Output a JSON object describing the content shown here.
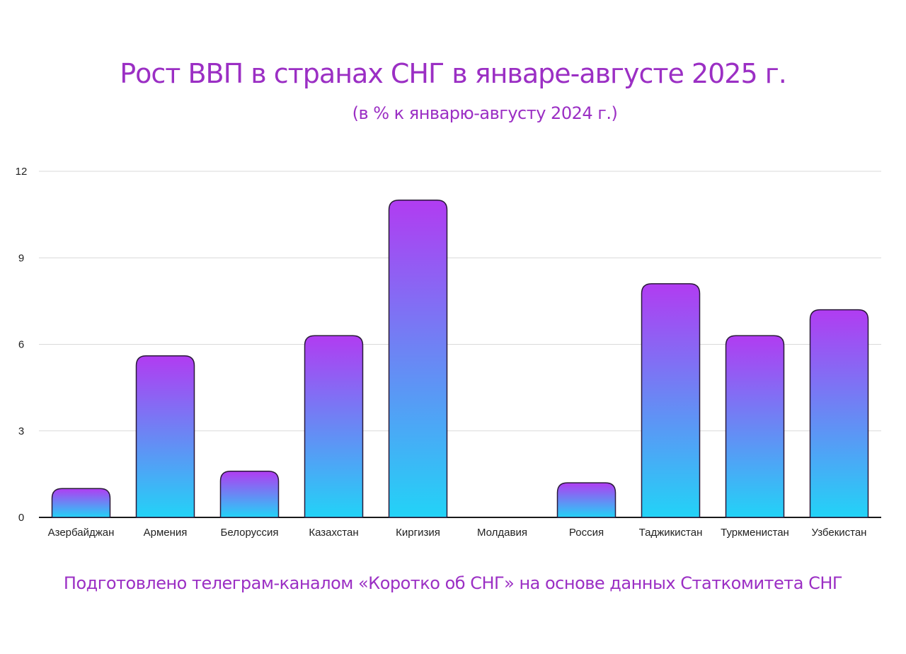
{
  "title": "Рост ВВП в странах СНГ в январе-августе 2025 г.",
  "subtitle": "(в % к январю-августу 2024 г.)",
  "footer": "Подготовлено телеграм-каналом «Коротко об СНГ» на основе данных Статкомитета СНГ",
  "colors": {
    "text_accent": "#9b2fc4",
    "bar_top": "#b13cf2",
    "bar_bottom": "#22d3f7",
    "bar_outline": "#2a1a3a",
    "grid": "#d9d9d9"
  },
  "chart_data": {
    "type": "bar",
    "title": "Рост ВВП в странах СНГ в январе-августе 2025 г.",
    "subtitle": "(в % к январю-августу 2024 г.)",
    "xlabel": "",
    "ylabel": "",
    "ylim": [
      0,
      12
    ],
    "yticks": [
      0,
      3,
      6,
      9,
      12
    ],
    "grid": true,
    "categories": [
      "Азербайджан",
      "Армения",
      "Белоруссия",
      "Казахстан",
      "Киргизия",
      "Молдавия",
      "Россия",
      "Таджикистан",
      "Туркменистан",
      "Узбекистан"
    ],
    "values": [
      1.0,
      5.6,
      1.6,
      6.3,
      11.0,
      0.0,
      1.2,
      8.1,
      6.3,
      7.2
    ]
  }
}
